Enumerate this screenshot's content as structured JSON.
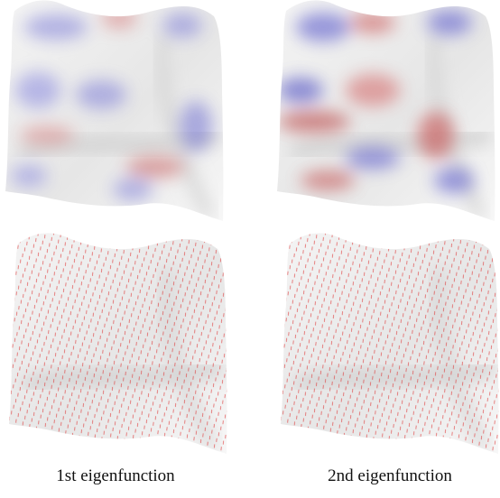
{
  "figure": {
    "panels": [
      {
        "caption": "1st eigenfunction"
      },
      {
        "caption": "2nd eigenfunction"
      }
    ]
  }
}
